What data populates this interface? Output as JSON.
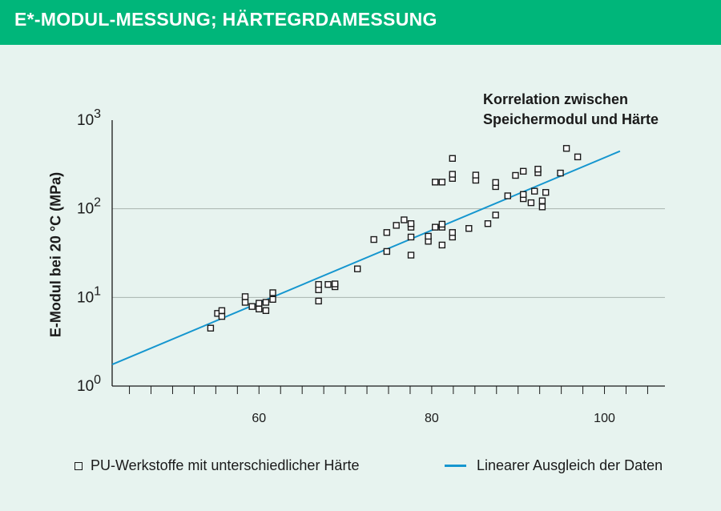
{
  "header": {
    "title": "E*-MODUL-MESSUNG; HÄRTEGRDAMESSUNG",
    "background_color": "#00b67a"
  },
  "chart_data": {
    "type": "scatter",
    "title_lines": [
      "Korrelation zwischen",
      "Speichermodul und Härte"
    ],
    "ylabel": "E-Modul bei 20 °C (MPa)",
    "xlabel": "",
    "y_scale": "log10",
    "x_ticks": [
      60,
      80,
      100
    ],
    "y_ticks": [
      {
        "base": "10",
        "exp": "0",
        "value": 1
      },
      {
        "base": "10",
        "exp": "1",
        "value": 10
      },
      {
        "base": "10",
        "exp": "2",
        "value": 100
      },
      {
        "base": "10",
        "exp": "3",
        "value": 1000
      }
    ],
    "xlim": [
      43,
      107
    ],
    "ylim": [
      1,
      1000
    ],
    "grid": "horizontal",
    "legend_position": "bottom",
    "series": [
      {
        "name": "PU-Werkstoffe mit unterschiedlicher Härte",
        "kind": "scatter",
        "marker": "hollow-square",
        "color": "#1a1a1a",
        "points": [
          [
            54.4,
            4.5
          ],
          [
            55.2,
            6.6
          ],
          [
            55.7,
            6.1
          ],
          [
            55.7,
            7.1
          ],
          [
            58.4,
            8.8
          ],
          [
            58.4,
            10.2
          ],
          [
            59.2,
            7.9
          ],
          [
            60.0,
            7.4
          ],
          [
            60.0,
            8.6
          ],
          [
            60.8,
            7.1
          ],
          [
            60.8,
            8.8
          ],
          [
            61.6,
            9.5
          ],
          [
            61.6,
            11.3
          ],
          [
            66.9,
            9.1
          ],
          [
            66.9,
            12.2
          ],
          [
            66.9,
            14.0
          ],
          [
            68.0,
            14.0
          ],
          [
            68.8,
            13.2
          ],
          [
            68.8,
            14.2
          ],
          [
            71.4,
            21.0
          ],
          [
            73.3,
            45.0
          ],
          [
            74.8,
            33.0
          ],
          [
            74.8,
            54.0
          ],
          [
            75.9,
            65.0
          ],
          [
            76.8,
            75.0
          ],
          [
            77.6,
            30.0
          ],
          [
            77.6,
            48.0
          ],
          [
            77.6,
            62.0
          ],
          [
            77.6,
            68.0
          ],
          [
            79.6,
            43.0
          ],
          [
            79.6,
            49.0
          ],
          [
            80.4,
            62.0
          ],
          [
            80.4,
            200.0
          ],
          [
            81.2,
            39.0
          ],
          [
            81.2,
            62.0
          ],
          [
            81.2,
            67.0
          ],
          [
            81.2,
            200.0
          ],
          [
            82.4,
            48.0
          ],
          [
            82.4,
            54.0
          ],
          [
            82.4,
            220.0
          ],
          [
            82.4,
            245.0
          ],
          [
            82.4,
            370.0
          ],
          [
            84.3,
            60.0
          ],
          [
            85.1,
            210.0
          ],
          [
            85.1,
            240.0
          ],
          [
            86.5,
            68.0
          ],
          [
            87.4,
            85.0
          ],
          [
            87.4,
            178.0
          ],
          [
            87.4,
            198.0
          ],
          [
            88.8,
            140.0
          ],
          [
            89.7,
            238.0
          ],
          [
            90.6,
            130.0
          ],
          [
            90.6,
            145.0
          ],
          [
            90.6,
            265.0
          ],
          [
            91.5,
            117.0
          ],
          [
            91.9,
            158.0
          ],
          [
            92.3,
            255.0
          ],
          [
            92.3,
            280.0
          ],
          [
            92.8,
            105.0
          ],
          [
            92.8,
            123.0
          ],
          [
            93.2,
            153.0
          ],
          [
            94.9,
            253.0
          ],
          [
            95.6,
            480.0
          ],
          [
            96.9,
            385.0
          ]
        ]
      },
      {
        "name": "Linearer Ausgleich der Daten",
        "kind": "line",
        "color": "#1596cf",
        "points": [
          [
            43,
            1.75
          ],
          [
            101.8,
            447
          ]
        ]
      }
    ]
  }
}
